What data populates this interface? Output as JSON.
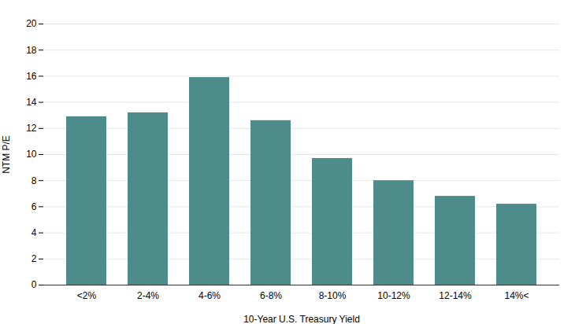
{
  "chart_data": {
    "type": "bar",
    "categories": [
      "<2%",
      "2-4%",
      "4-6%",
      "6-8%",
      "8-10%",
      "10-12%",
      "12-14%",
      "14%<"
    ],
    "values": [
      12.9,
      13.2,
      15.9,
      12.6,
      9.7,
      8.0,
      6.8,
      6.2
    ],
    "color": "#4d8c8a",
    "xlabel": "10-Year U.S. Treasury Yield",
    "ylabel": "NTM P/E",
    "ylim": [
      0,
      20
    ],
    "yticks": [
      0,
      2,
      4,
      6,
      8,
      10,
      12,
      14,
      16,
      18,
      20
    ],
    "grid": true
  }
}
